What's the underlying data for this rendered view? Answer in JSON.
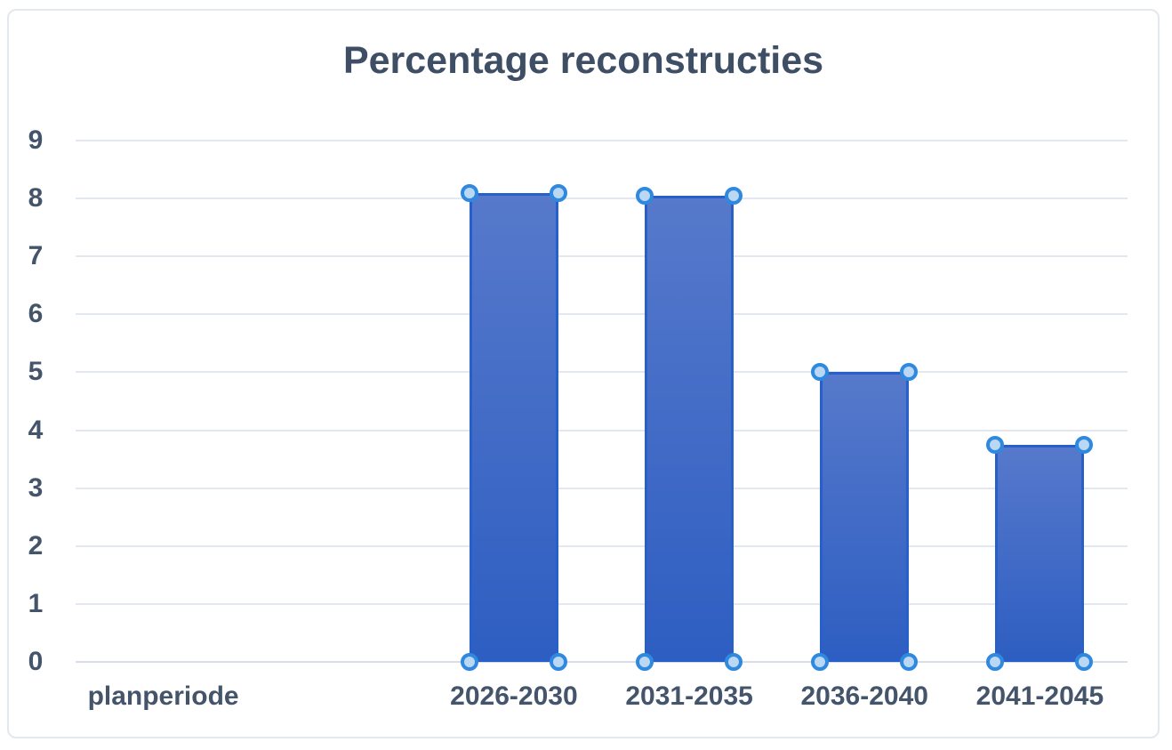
{
  "chart_data": {
    "type": "bar",
    "title": "Percentage reconstructies",
    "categories": [
      "planperiode",
      "",
      "2026-2030",
      "2031-2035",
      "2036-2040",
      "2041-2045"
    ],
    "values": [
      null,
      null,
      8.1,
      8.05,
      5.0,
      3.75
    ],
    "xlabel": "",
    "ylabel": "",
    "ylim": [
      0,
      9
    ],
    "yticks": [
      9,
      8,
      7,
      6,
      5,
      4,
      3,
      2,
      1,
      0
    ],
    "grid": true,
    "legend": false,
    "series_selected": true,
    "colors": {
      "bar_gradient_top": "#5679cb",
      "bar_gradient_bottom": "#2e5ec2",
      "bar_border": "#2760c8",
      "handle_ring": "#2f89df",
      "handle_fill": "#bad7f3",
      "gridline": "#e3e7ef",
      "axis_line": "#d8dde6",
      "tick_text": "#44546a",
      "title_text": "#3e4e64",
      "chart_border": "#e3e8ef"
    }
  }
}
